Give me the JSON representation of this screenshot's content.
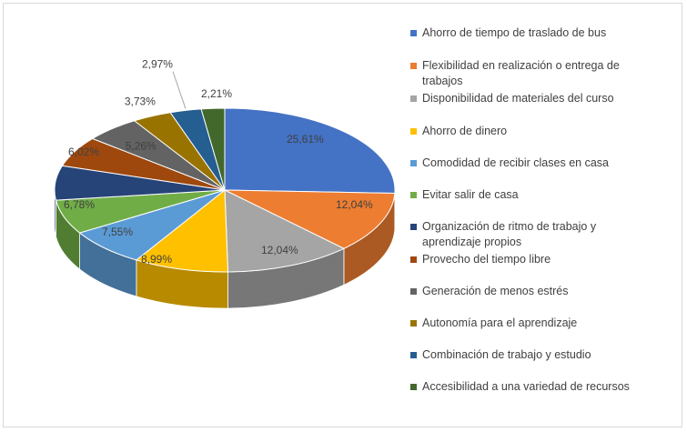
{
  "chart_data": {
    "type": "pie",
    "variant": "3d-pie",
    "title": "",
    "legend_position": "right",
    "slices": [
      {
        "label": "Ahorro de tiempo de traslado de bus",
        "value": 25.61,
        "display": "25,61%",
        "color": "#4472C4"
      },
      {
        "label": "Flexibilidad en realización o entrega de trabajos",
        "value": 12.04,
        "display": "12,04%",
        "color": "#ED7D31"
      },
      {
        "label": "Disponibilidad de materiales del curso",
        "value": 12.04,
        "display": "12,04%",
        "color": "#A5A5A5"
      },
      {
        "label": "Ahorro de dinero",
        "value": 8.99,
        "display": "8,99%",
        "color": "#FFC000"
      },
      {
        "label": "Comodidad de recibir clases en casa",
        "value": 7.55,
        "display": "7,55%",
        "color": "#5B9BD5"
      },
      {
        "label": "Evitar salir de casa",
        "value": 6.78,
        "display": "6,78%",
        "color": "#70AD47"
      },
      {
        "label": "Organización de ritmo de trabajo y aprendizaje propios",
        "value": 6.78,
        "display": "",
        "color": "#264478"
      },
      {
        "label": "Provecho del tiempo libre",
        "value": 6.02,
        "display": "6,02%",
        "color": "#9E480E"
      },
      {
        "label": "Generación de menos estrés",
        "value": 5.26,
        "display": "5,26%",
        "color": "#636363"
      },
      {
        "label": "Autonomía para el aprendizaje",
        "value": 3.73,
        "display": "3,73%",
        "color": "#997300"
      },
      {
        "label": "Combinación de trabajo y estudio",
        "value": 2.97,
        "display": "2,97%",
        "color": "#255E91"
      },
      {
        "label": "Accesibilidad a una variedad de recursos",
        "value": 2.21,
        "display": "2,21%",
        "color": "#43682B"
      }
    ]
  },
  "legend": {
    "items": [
      {
        "line1": "Ahorro de tiempo de traslado de bus",
        "line2": ""
      },
      {
        "line1": "Flexibilidad en realización o entrega de",
        "line2": "trabajos"
      },
      {
        "line1": "Disponibilidad de materiales del curso",
        "line2": ""
      },
      {
        "line1": "Ahorro de dinero",
        "line2": ""
      },
      {
        "line1": "Comodidad de recibir clases en casa",
        "line2": ""
      },
      {
        "line1": "Evitar salir de casa",
        "line2": ""
      },
      {
        "line1": "Organización de ritmo de trabajo y",
        "line2": "aprendizaje propios"
      },
      {
        "line1": "Provecho del tiempo libre",
        "line2": ""
      },
      {
        "line1": "Generación de menos estrés",
        "line2": ""
      },
      {
        "line1": "Autonomía para el aprendizaje",
        "line2": ""
      },
      {
        "line1": "Combinación de trabajo y estudio",
        "line2": ""
      },
      {
        "line1": "Accesibilidad a una variedad de recursos",
        "line2": ""
      }
    ]
  }
}
